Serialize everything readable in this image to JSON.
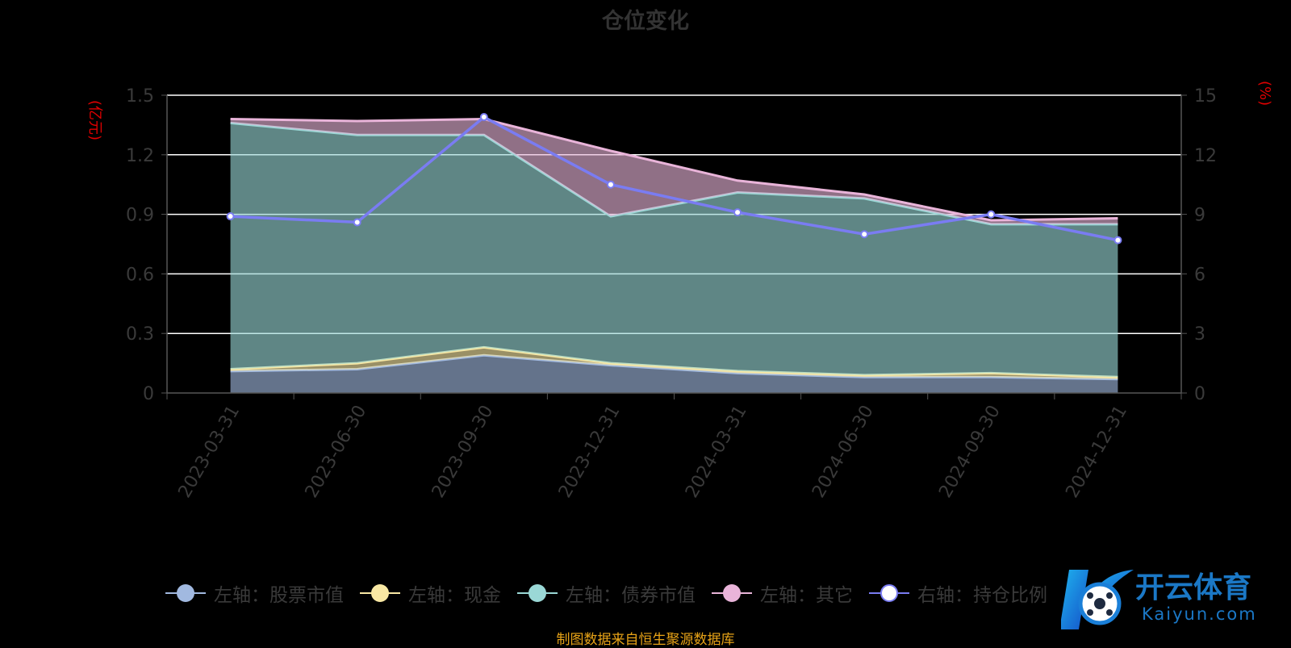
{
  "chart_data": {
    "type": "area",
    "title": "仓位变化",
    "categories": [
      "2023-03-31",
      "2023-06-30",
      "2023-09-30",
      "2023-12-31",
      "2024-03-31",
      "2024-06-30",
      "2024-09-30",
      "2024-12-31"
    ],
    "ylabel_left": "(亿元)",
    "ylabel_right": "(%)",
    "ylim_left": [
      0,
      1.5
    ],
    "ylim_right": [
      0,
      15
    ],
    "yticks_left": [
      "0",
      "0.3",
      "0.6",
      "0.9",
      "1.2",
      "1.5"
    ],
    "yticks_right": [
      "0",
      "3",
      "6",
      "9",
      "12",
      "15"
    ],
    "stacked": true,
    "grid": true,
    "legend_position": "bottom",
    "series": [
      {
        "name": "左轴：股票市值",
        "axis": "left",
        "type": "area",
        "color": "#a1b9e0",
        "values": [
          0.11,
          0.12,
          0.19,
          0.14,
          0.1,
          0.08,
          0.08,
          0.07
        ]
      },
      {
        "name": "左轴：现金",
        "axis": "left",
        "type": "area",
        "color": "#f9e8a4",
        "values": [
          0.01,
          0.03,
          0.04,
          0.01,
          0.01,
          0.01,
          0.02,
          0.01
        ]
      },
      {
        "name": "左轴：债券市值",
        "axis": "left",
        "type": "area",
        "color": "#9ad8d6",
        "values": [
          1.24,
          1.15,
          1.07,
          0.74,
          0.9,
          0.89,
          0.75,
          0.77
        ]
      },
      {
        "name": "左轴：其它",
        "axis": "left",
        "type": "area",
        "color": "#e9b4d9",
        "values": [
          0.02,
          0.07,
          0.08,
          0.33,
          0.06,
          0.02,
          0.02,
          0.03
        ]
      },
      {
        "name": "右轴：持仓比例",
        "axis": "right",
        "type": "line",
        "color": "#7a7cf2",
        "values": [
          8.9,
          8.6,
          13.9,
          10.5,
          9.1,
          8.0,
          9.0,
          7.7
        ]
      }
    ],
    "source_note": "制图数据来自恒生聚源数据库"
  },
  "watermark": {
    "brand": "开云体育",
    "url": "Kaiyun.com"
  }
}
